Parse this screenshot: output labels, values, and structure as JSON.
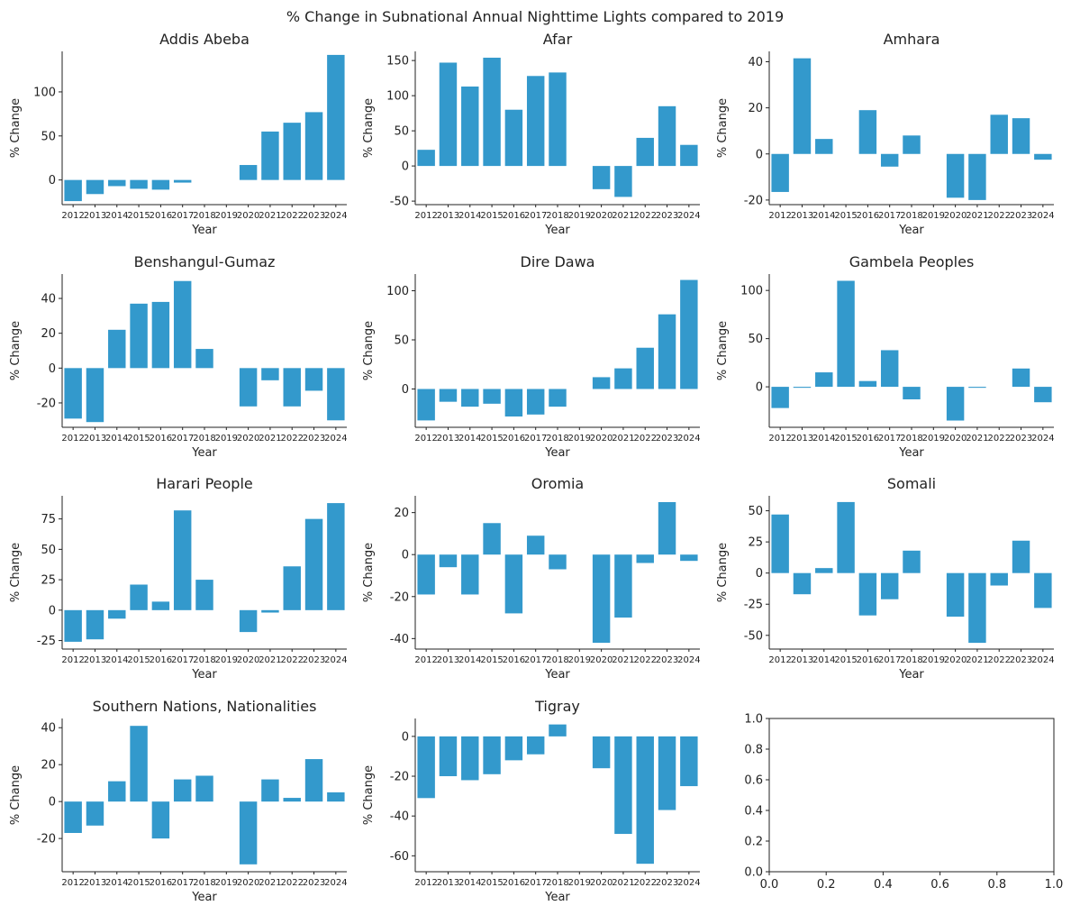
{
  "figure": {
    "title": "% Change in Subnational Annual Nighttime Lights compared to 2019",
    "bar_color": "#3399CC"
  },
  "chart_data": [
    {
      "type": "bar",
      "title": "Addis Abeba",
      "xlabel": "Year",
      "ylabel": "% Change",
      "categories": [
        "2012",
        "2013",
        "2014",
        "2015",
        "2016",
        "2017",
        "2018",
        "2019",
        "2020",
        "2021",
        "2022",
        "2023",
        "2024"
      ],
      "values": [
        -24,
        -16,
        -7,
        -10,
        -11,
        -3,
        0,
        0,
        17,
        55,
        65,
        77,
        142
      ],
      "ylim": [
        -28,
        146
      ],
      "yticks": [
        0,
        50,
        100
      ]
    },
    {
      "type": "bar",
      "title": "Afar",
      "xlabel": "Year",
      "ylabel": "% Change",
      "categories": [
        "2012",
        "2013",
        "2014",
        "2015",
        "2016",
        "2017",
        "2018",
        "2019",
        "2020",
        "2021",
        "2022",
        "2023",
        "2024"
      ],
      "values": [
        23,
        147,
        113,
        154,
        80,
        128,
        133,
        0,
        -33,
        -44,
        40,
        85,
        30
      ],
      "ylim": [
        -55,
        163
      ],
      "yticks": [
        -50,
        0,
        50,
        100,
        150
      ]
    },
    {
      "type": "bar",
      "title": "Amhara",
      "xlabel": "Year",
      "ylabel": "% Change",
      "categories": [
        "2012",
        "2013",
        "2014",
        "2015",
        "2016",
        "2017",
        "2018",
        "2019",
        "2020",
        "2021",
        "2022",
        "2023",
        "2024"
      ],
      "values": [
        -16.5,
        41.5,
        6.5,
        0,
        19,
        -5.5,
        8,
        0,
        -19,
        -20,
        17,
        15.5,
        -2.5
      ],
      "ylim": [
        -22,
        44.5
      ],
      "yticks": [
        -20,
        0,
        20,
        40
      ]
    },
    {
      "type": "bar",
      "title": "Benshangul-Gumaz",
      "xlabel": "Year",
      "ylabel": "% Change",
      "categories": [
        "2012",
        "2013",
        "2014",
        "2015",
        "2016",
        "2017",
        "2018",
        "2019",
        "2020",
        "2021",
        "2022",
        "2023",
        "2024"
      ],
      "values": [
        -29,
        -31,
        22,
        37,
        38,
        50,
        11,
        0,
        -22,
        -7,
        -22,
        -13,
        -30
      ],
      "ylim": [
        -34,
        54
      ],
      "yticks": [
        -20,
        0,
        20,
        40
      ]
    },
    {
      "type": "bar",
      "title": "Dire Dawa",
      "xlabel": "Year",
      "ylabel": "% Change",
      "categories": [
        "2012",
        "2013",
        "2014",
        "2015",
        "2016",
        "2017",
        "2018",
        "2019",
        "2020",
        "2021",
        "2022",
        "2023",
        "2024"
      ],
      "values": [
        -32,
        -13,
        -18,
        -15,
        -28,
        -26,
        -18,
        0,
        12,
        21,
        42,
        76,
        111
      ],
      "ylim": [
        -39,
        117
      ],
      "yticks": [
        0,
        50,
        100
      ]
    },
    {
      "type": "bar",
      "title": "Gambela Peoples",
      "xlabel": "Year",
      "ylabel": "% Change",
      "categories": [
        "2012",
        "2013",
        "2014",
        "2015",
        "2016",
        "2017",
        "2018",
        "2019",
        "2020",
        "2021",
        "2022",
        "2023",
        "2024"
      ],
      "values": [
        -22,
        -1,
        15,
        110,
        6,
        38,
        -13,
        0,
        -35,
        -1,
        0,
        19,
        -16
      ],
      "ylim": [
        -42,
        117
      ],
      "yticks": [
        0,
        50,
        100
      ]
    },
    {
      "type": "bar",
      "title": "Harari People",
      "xlabel": "Year",
      "ylabel": "% Change",
      "categories": [
        "2012",
        "2013",
        "2014",
        "2015",
        "2016",
        "2017",
        "2018",
        "2019",
        "2020",
        "2021",
        "2022",
        "2023",
        "2024"
      ],
      "values": [
        -26,
        -24,
        -7,
        21,
        7,
        82,
        25,
        0,
        -18,
        -2,
        36,
        75,
        88
      ],
      "ylim": [
        -32,
        94
      ],
      "yticks": [
        -25,
        0,
        25,
        50,
        75
      ]
    },
    {
      "type": "bar",
      "title": "Oromia",
      "xlabel": "Year",
      "ylabel": "% Change",
      "categories": [
        "2012",
        "2013",
        "2014",
        "2015",
        "2016",
        "2017",
        "2018",
        "2019",
        "2020",
        "2021",
        "2022",
        "2023",
        "2024"
      ],
      "values": [
        -19,
        -6,
        -19,
        15,
        -28,
        9,
        -7,
        0,
        -42,
        -30,
        -4,
        25,
        -3
      ],
      "ylim": [
        -45,
        28
      ],
      "yticks": [
        -40,
        -20,
        0,
        20
      ]
    },
    {
      "type": "bar",
      "title": "Somali",
      "xlabel": "Year",
      "ylabel": "% Change",
      "categories": [
        "2012",
        "2013",
        "2014",
        "2015",
        "2016",
        "2017",
        "2018",
        "2019",
        "2020",
        "2021",
        "2022",
        "2023",
        "2024"
      ],
      "values": [
        47,
        -17,
        4,
        57,
        -34,
        -21,
        18,
        0,
        -35,
        -56,
        -10,
        26,
        -28
      ],
      "ylim": [
        -61,
        62
      ],
      "yticks": [
        -50,
        -25,
        0,
        25,
        50
      ]
    },
    {
      "type": "bar",
      "title": "Southern Nations, Nationalities",
      "xlabel": "Year",
      "ylabel": "% Change",
      "categories": [
        "2012",
        "2013",
        "2014",
        "2015",
        "2016",
        "2017",
        "2018",
        "2019",
        "2020",
        "2021",
        "2022",
        "2023",
        "2024"
      ],
      "values": [
        -17,
        -13,
        11,
        41,
        -20,
        12,
        14,
        0,
        -34,
        12,
        2,
        23,
        5
      ],
      "ylim": [
        -38,
        45
      ],
      "yticks": [
        -20,
        0,
        20,
        40
      ]
    },
    {
      "type": "bar",
      "title": "Tigray",
      "xlabel": "Year",
      "ylabel": "% Change",
      "categories": [
        "2012",
        "2013",
        "2014",
        "2015",
        "2016",
        "2017",
        "2018",
        "2019",
        "2020",
        "2021",
        "2022",
        "2023",
        "2024"
      ],
      "values": [
        -31,
        -20,
        -22,
        -19,
        -12,
        -9,
        6,
        0,
        -16,
        -49,
        -64,
        -37,
        -25
      ],
      "ylim": [
        -68,
        9
      ],
      "yticks": [
        -60,
        -40,
        -20,
        0
      ]
    },
    {
      "type": "empty",
      "title": "",
      "xlim": [
        0,
        1
      ],
      "ylim": [
        0,
        1
      ],
      "xticks": [
        "0.0",
        "0.2",
        "0.4",
        "0.6",
        "0.8",
        "1.0"
      ],
      "yticks": [
        "0.0",
        "0.2",
        "0.4",
        "0.6",
        "0.8",
        "1.0"
      ]
    }
  ]
}
